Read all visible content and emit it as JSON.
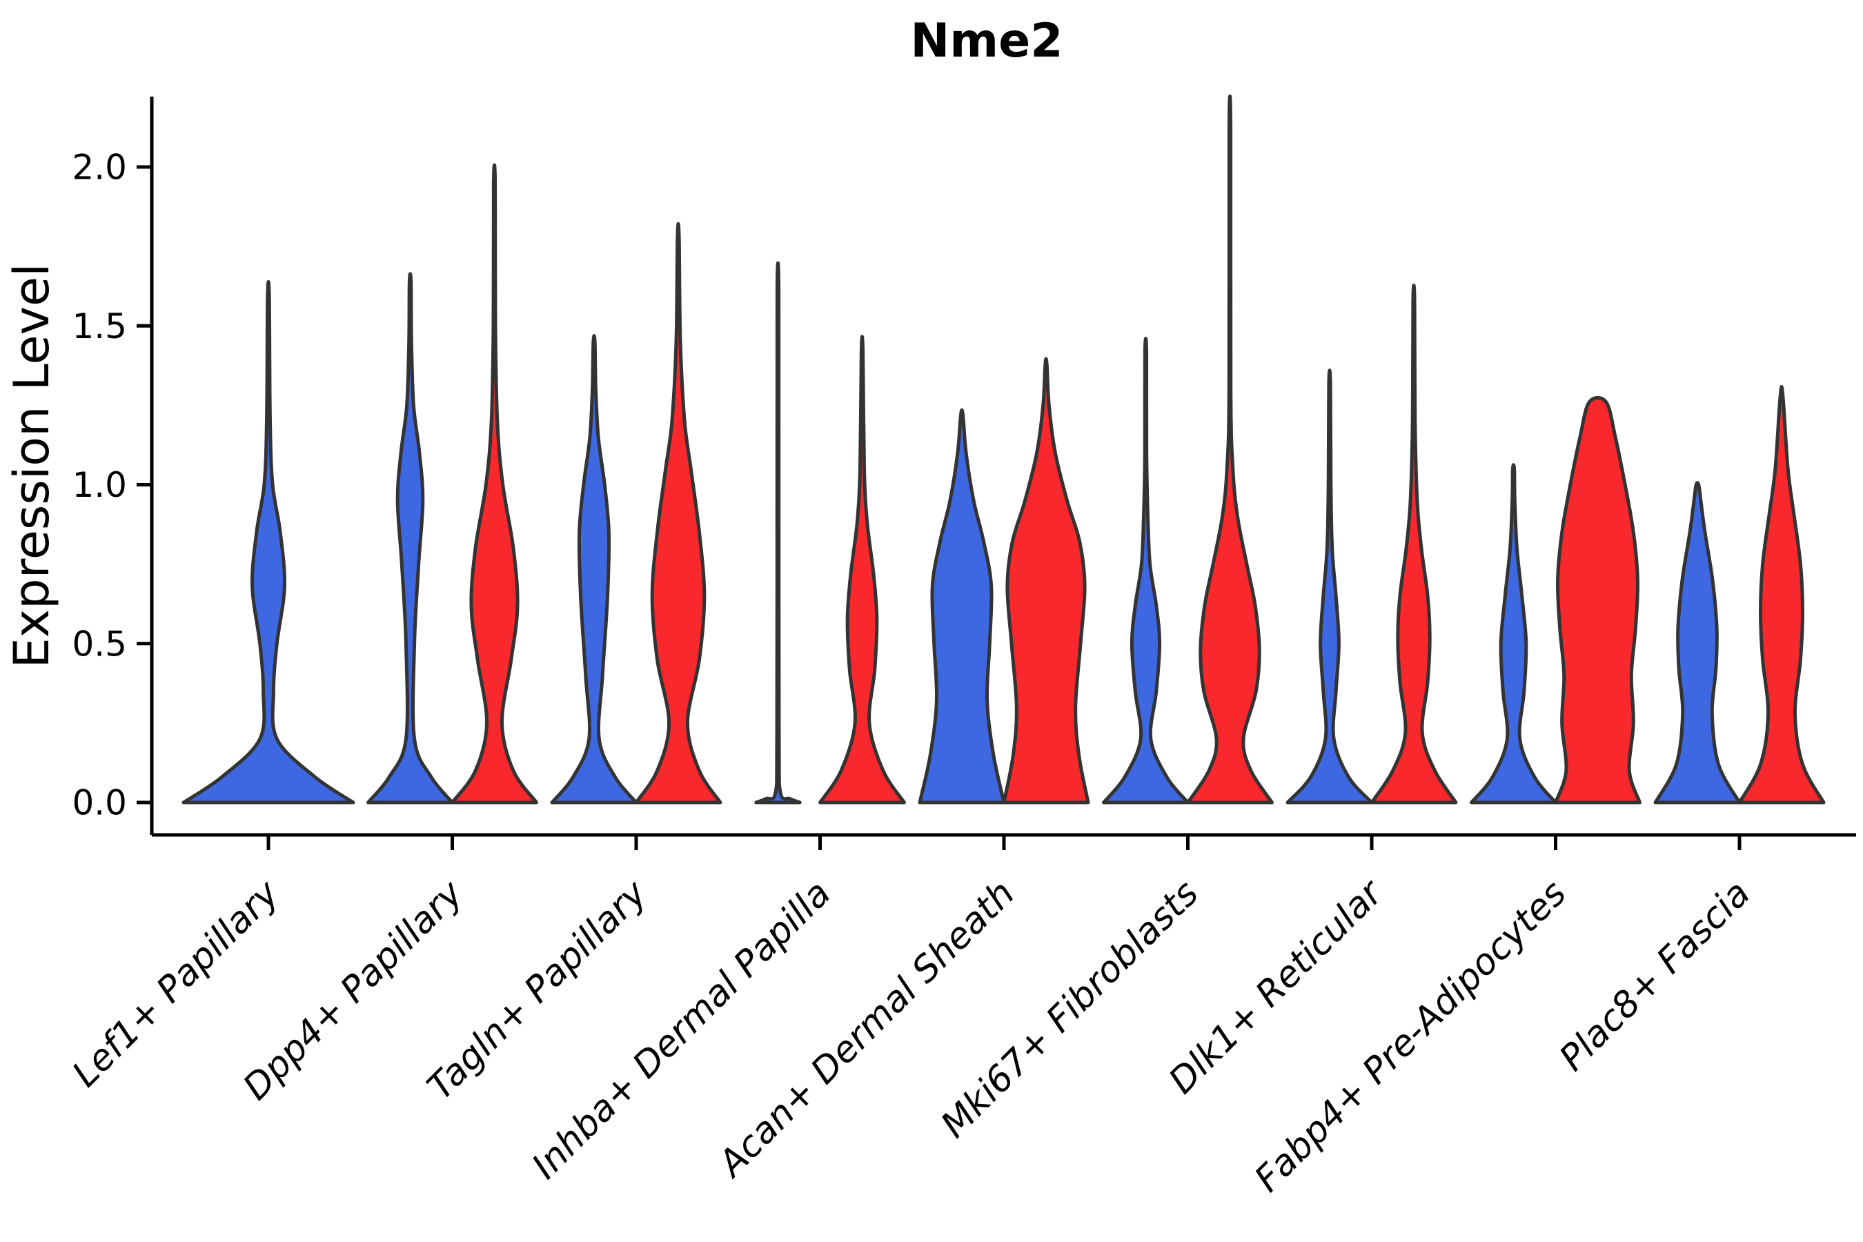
{
  "chart_data": {
    "type": "violin",
    "title": "Nme2",
    "ylabel": "Expression Level",
    "xlabel": "",
    "grid": false,
    "legend_position": "none",
    "ylim": [
      -0.05,
      2.22
    ],
    "yticks": [
      0.0,
      0.5,
      1.0,
      1.5,
      2.0
    ],
    "ytick_labels": [
      "0.0",
      "0.5",
      "1.0",
      "1.5",
      "2.0"
    ],
    "colors": {
      "blue": "#3E68E1",
      "red": "#F8282C",
      "outline": "#333333",
      "axis": "#000000"
    },
    "categories": [
      "Lef1+ Papillary",
      "Dpp4+ Papillary",
      "Tagln+ Papillary",
      "Inhba+ Dermal Papilla",
      "Acan+ Dermal Sheath",
      "Mki67+ Fibroblasts",
      "Dlk1+ Reticular",
      "Fabp4+ Pre-Adipocytes",
      "Plac8+ Fascia"
    ],
    "violins": [
      {
        "category": "Lef1+ Papillary",
        "split": "blue",
        "single": true,
        "max_expression": 1.59,
        "profile": [
          [
            0,
            1.0
          ],
          [
            0.08,
            0.55
          ],
          [
            0.2,
            0.1
          ],
          [
            0.35,
            0.06
          ],
          [
            0.5,
            0.1
          ],
          [
            0.68,
            0.19
          ],
          [
            0.85,
            0.14
          ],
          [
            1.0,
            0.05
          ],
          [
            1.2,
            0.02
          ],
          [
            1.59,
            0.01
          ]
        ]
      },
      {
        "category": "Dpp4+ Papillary",
        "split": "blue",
        "single": false,
        "max_expression": 1.64,
        "profile": [
          [
            0,
            1.0
          ],
          [
            0.08,
            0.5
          ],
          [
            0.2,
            0.1
          ],
          [
            0.5,
            0.1
          ],
          [
            0.75,
            0.2
          ],
          [
            0.95,
            0.3
          ],
          [
            1.1,
            0.22
          ],
          [
            1.25,
            0.08
          ],
          [
            1.45,
            0.03
          ],
          [
            1.64,
            0.012
          ]
        ]
      },
      {
        "category": "Dpp4+ Papillary",
        "split": "red",
        "single": false,
        "max_expression": 1.95,
        "profile": [
          [
            0,
            1.0
          ],
          [
            0.1,
            0.45
          ],
          [
            0.25,
            0.18
          ],
          [
            0.45,
            0.4
          ],
          [
            0.62,
            0.55
          ],
          [
            0.8,
            0.45
          ],
          [
            1.0,
            0.2
          ],
          [
            1.2,
            0.07
          ],
          [
            1.5,
            0.025
          ],
          [
            1.95,
            0.012
          ]
        ]
      },
      {
        "category": "Tagln+ Papillary",
        "split": "blue",
        "single": false,
        "max_expression": 1.45,
        "profile": [
          [
            0,
            1.0
          ],
          [
            0.08,
            0.5
          ],
          [
            0.2,
            0.12
          ],
          [
            0.4,
            0.2
          ],
          [
            0.65,
            0.32
          ],
          [
            0.85,
            0.35
          ],
          [
            1.0,
            0.25
          ],
          [
            1.15,
            0.1
          ],
          [
            1.3,
            0.04
          ],
          [
            1.45,
            0.018
          ]
        ]
      },
      {
        "category": "Tagln+ Papillary",
        "split": "red",
        "single": false,
        "max_expression": 1.78,
        "profile": [
          [
            0,
            1.0
          ],
          [
            0.1,
            0.5
          ],
          [
            0.25,
            0.22
          ],
          [
            0.45,
            0.5
          ],
          [
            0.65,
            0.62
          ],
          [
            0.85,
            0.5
          ],
          [
            1.05,
            0.3
          ],
          [
            1.2,
            0.15
          ],
          [
            1.45,
            0.05
          ],
          [
            1.78,
            0.012
          ]
        ]
      },
      {
        "category": "Inhba+ Dermal Papilla",
        "split": "blue",
        "single": false,
        "max_expression": 1.62,
        "profile": [
          [
            0,
            0.52
          ],
          [
            0.012,
            0.28
          ],
          [
            0.03,
            0.06
          ],
          [
            0.2,
            0.025
          ],
          [
            1.0,
            0.02
          ],
          [
            1.62,
            0.015
          ]
        ]
      },
      {
        "category": "Inhba+ Dermal Papilla",
        "split": "red",
        "single": false,
        "max_expression": 1.42,
        "profile": [
          [
            0,
            1.0
          ],
          [
            0.1,
            0.5
          ],
          [
            0.25,
            0.17
          ],
          [
            0.42,
            0.3
          ],
          [
            0.58,
            0.35
          ],
          [
            0.72,
            0.27
          ],
          [
            0.88,
            0.12
          ],
          [
            1.05,
            0.05
          ],
          [
            1.42,
            0.012
          ]
        ]
      },
      {
        "category": "Acan+ Dermal Sheath",
        "split": "blue",
        "single": false,
        "max_expression": 1.22,
        "profile": [
          [
            0,
            1.0
          ],
          [
            0.15,
            0.75
          ],
          [
            0.32,
            0.6
          ],
          [
            0.5,
            0.66
          ],
          [
            0.68,
            0.7
          ],
          [
            0.82,
            0.52
          ],
          [
            0.95,
            0.28
          ],
          [
            1.1,
            0.1
          ],
          [
            1.22,
            0.025
          ]
        ]
      },
      {
        "category": "Acan+ Dermal Sheath",
        "split": "red",
        "single": false,
        "max_expression": 1.38,
        "profile": [
          [
            0,
            1.0
          ],
          [
            0.15,
            0.78
          ],
          [
            0.3,
            0.7
          ],
          [
            0.5,
            0.82
          ],
          [
            0.68,
            0.92
          ],
          [
            0.82,
            0.8
          ],
          [
            0.95,
            0.5
          ],
          [
            1.1,
            0.22
          ],
          [
            1.25,
            0.07
          ],
          [
            1.38,
            0.015
          ]
        ]
      },
      {
        "category": "Mki67+ Fibroblasts",
        "split": "blue",
        "single": false,
        "max_expression": 1.42,
        "profile": [
          [
            0,
            1.0
          ],
          [
            0.08,
            0.5
          ],
          [
            0.2,
            0.12
          ],
          [
            0.35,
            0.25
          ],
          [
            0.5,
            0.33
          ],
          [
            0.62,
            0.25
          ],
          [
            0.75,
            0.1
          ],
          [
            0.9,
            0.05
          ],
          [
            1.1,
            0.02
          ],
          [
            1.42,
            0.01
          ]
        ]
      },
      {
        "category": "Mki67+ Fibroblasts",
        "split": "red",
        "single": false,
        "max_expression": 2.12,
        "profile": [
          [
            0,
            1.0
          ],
          [
            0.1,
            0.5
          ],
          [
            0.2,
            0.32
          ],
          [
            0.35,
            0.62
          ],
          [
            0.48,
            0.7
          ],
          [
            0.62,
            0.6
          ],
          [
            0.75,
            0.4
          ],
          [
            0.9,
            0.18
          ],
          [
            1.05,
            0.07
          ],
          [
            1.3,
            0.02
          ],
          [
            2.12,
            0.01
          ]
        ]
      },
      {
        "category": "Dlk1+ Reticular",
        "split": "blue",
        "single": false,
        "max_expression": 1.32,
        "profile": [
          [
            0,
            1.0
          ],
          [
            0.08,
            0.45
          ],
          [
            0.2,
            0.1
          ],
          [
            0.35,
            0.15
          ],
          [
            0.5,
            0.22
          ],
          [
            0.65,
            0.15
          ],
          [
            0.8,
            0.06
          ],
          [
            1.0,
            0.03
          ],
          [
            1.32,
            0.012
          ]
        ]
      },
      {
        "category": "Dlk1+ Reticular",
        "split": "red",
        "single": false,
        "max_expression": 1.58,
        "profile": [
          [
            0,
            1.0
          ],
          [
            0.1,
            0.5
          ],
          [
            0.22,
            0.2
          ],
          [
            0.38,
            0.33
          ],
          [
            0.52,
            0.38
          ],
          [
            0.65,
            0.33
          ],
          [
            0.8,
            0.18
          ],
          [
            0.95,
            0.08
          ],
          [
            1.2,
            0.03
          ],
          [
            1.58,
            0.012
          ]
        ]
      },
      {
        "category": "Fabp4+ Pre-Adipocytes",
        "split": "blue",
        "single": false,
        "max_expression": 1.05,
        "profile": [
          [
            0,
            1.0
          ],
          [
            0.08,
            0.5
          ],
          [
            0.2,
            0.15
          ],
          [
            0.35,
            0.25
          ],
          [
            0.5,
            0.3
          ],
          [
            0.65,
            0.2
          ],
          [
            0.8,
            0.08
          ],
          [
            0.95,
            0.03
          ],
          [
            1.05,
            0.015
          ]
        ]
      },
      {
        "category": "Fabp4+ Pre-Adipocytes",
        "split": "red",
        "single": false,
        "max_expression": 1.26,
        "profile": [
          [
            0,
            1.0
          ],
          [
            0.1,
            0.75
          ],
          [
            0.25,
            0.85
          ],
          [
            0.4,
            0.8
          ],
          [
            0.55,
            0.9
          ],
          [
            0.7,
            0.95
          ],
          [
            0.85,
            0.85
          ],
          [
            1.0,
            0.65
          ],
          [
            1.15,
            0.42
          ],
          [
            1.26,
            0.2
          ]
        ]
      },
      {
        "category": "Plac8+ Fascia",
        "split": "blue",
        "single": false,
        "max_expression": 1.0,
        "profile": [
          [
            0,
            1.0
          ],
          [
            0.12,
            0.5
          ],
          [
            0.28,
            0.35
          ],
          [
            0.42,
            0.44
          ],
          [
            0.55,
            0.46
          ],
          [
            0.7,
            0.36
          ],
          [
            0.85,
            0.18
          ],
          [
            0.95,
            0.08
          ],
          [
            1.0,
            0.03
          ]
        ]
      },
      {
        "category": "Plac8+ Fascia",
        "split": "red",
        "single": false,
        "max_expression": 1.28,
        "profile": [
          [
            0,
            1.0
          ],
          [
            0.12,
            0.5
          ],
          [
            0.28,
            0.32
          ],
          [
            0.45,
            0.45
          ],
          [
            0.6,
            0.5
          ],
          [
            0.75,
            0.45
          ],
          [
            0.9,
            0.3
          ],
          [
            1.05,
            0.15
          ],
          [
            1.28,
            0.03
          ]
        ]
      }
    ]
  }
}
